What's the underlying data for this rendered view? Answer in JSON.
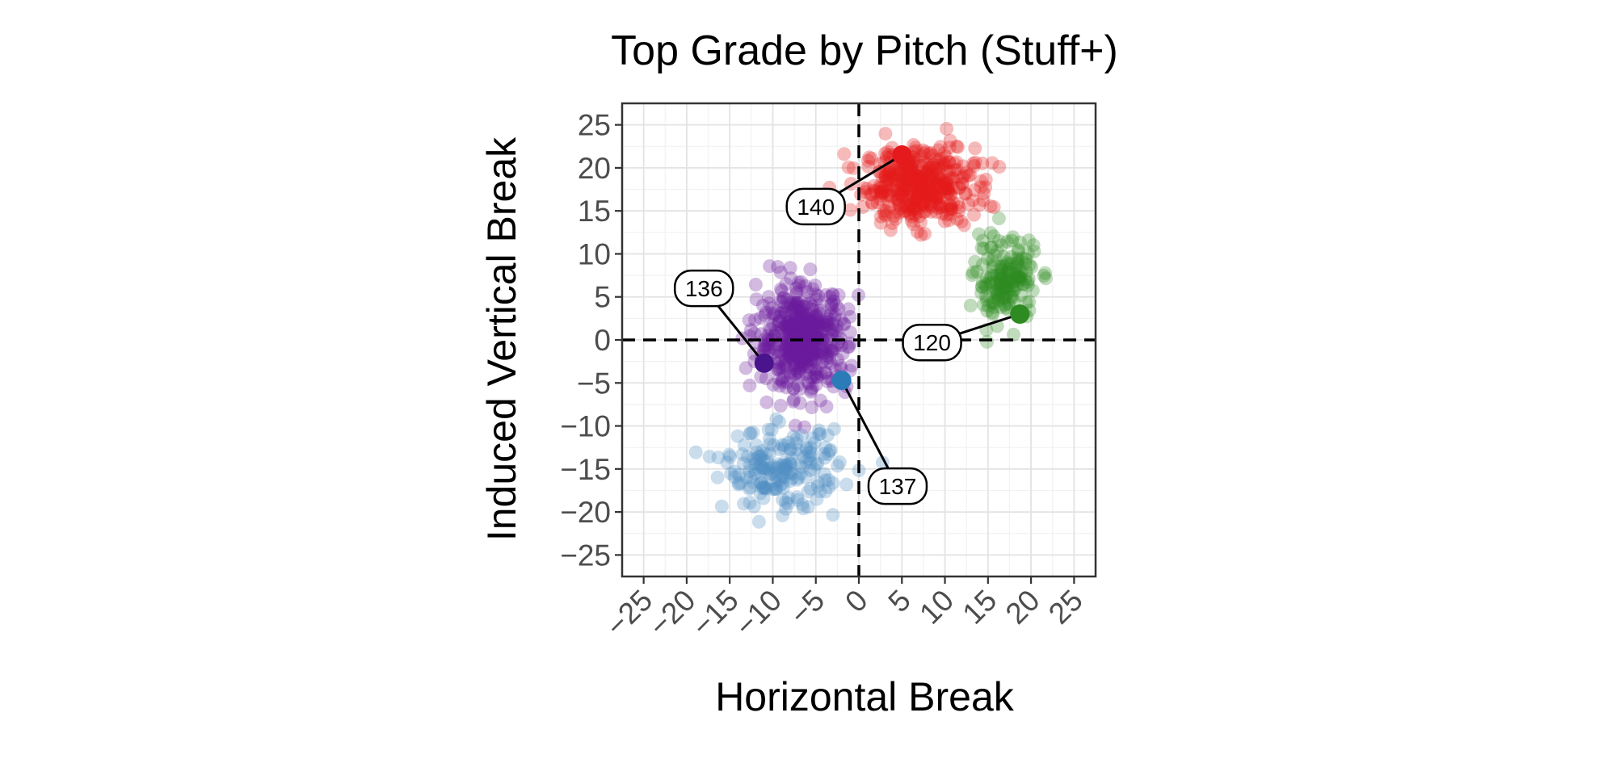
{
  "chart_data": {
    "type": "scatter",
    "title": "Top Grade by Pitch (Stuff+)",
    "xlabel": "Horizontal Break",
    "ylabel": "Induced Vertical Break",
    "xlim": [
      -27.5,
      27.5
    ],
    "ylim": [
      -27.5,
      27.5
    ],
    "xticks": [
      -25,
      -20,
      -15,
      -10,
      -5,
      0,
      5,
      10,
      15,
      20,
      25
    ],
    "yticks": [
      -25,
      -20,
      -15,
      -10,
      -5,
      0,
      5,
      10,
      15,
      20,
      25
    ],
    "x_tick_labels": [
      "−25",
      "−20",
      "−15",
      "−10",
      "−5",
      "0",
      "5",
      "10",
      "15",
      "20",
      "25"
    ],
    "y_tick_labels": [
      "−25",
      "−20",
      "−15",
      "−10",
      "−5",
      "0",
      "5",
      "10",
      "15",
      "20",
      "25"
    ],
    "grid": true,
    "reference_lines": {
      "x": 0,
      "y": 0,
      "style": "dashed"
    },
    "series": [
      {
        "color": "#e41a1c",
        "center": [
          7,
          18
        ],
        "spread": [
          3.2,
          2.2
        ],
        "count": 420
      },
      {
        "color": "#2e8b22",
        "center": [
          17,
          7
        ],
        "spread": [
          1.8,
          2.4
        ],
        "count": 170
      },
      {
        "color": "#6a1b9a",
        "center": [
          -6.5,
          0
        ],
        "spread": [
          2.6,
          3.0
        ],
        "count": 480
      },
      {
        "color": "#4f8fc4",
        "center": [
          -9,
          -15
        ],
        "spread": [
          3.3,
          2.2
        ],
        "count": 190
      }
    ],
    "highlighted": [
      {
        "x": 5,
        "y": 21.5,
        "label": "140",
        "color": "#e41a1c",
        "label_pos": [
          -5,
          15.5
        ]
      },
      {
        "x": 18.7,
        "y": 3,
        "label": "120",
        "color": "#2e8b22",
        "label_pos": [
          8.5,
          -0.3
        ]
      },
      {
        "x": -11,
        "y": -2.7,
        "label": "136",
        "color": "#4a148c",
        "label_pos": [
          -18,
          6
        ]
      },
      {
        "x": -2,
        "y": -4.7,
        "label": "137",
        "color": "#2b7bb9",
        "label_pos": [
          4.5,
          -17
        ]
      }
    ]
  }
}
